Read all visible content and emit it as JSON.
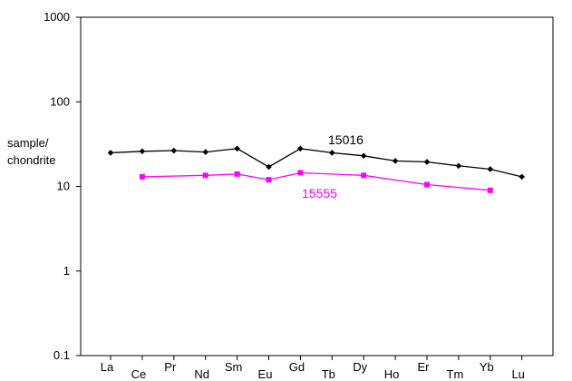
{
  "chart_data": {
    "type": "line",
    "title": "",
    "xlabel": "",
    "ylabel": "sample/ chondrite",
    "ylabel_lines": [
      "sample/",
      "chondrite"
    ],
    "yscale": "log",
    "ylim": [
      0.1,
      1000
    ],
    "yticks": [
      "0.1",
      "1",
      "10",
      "100",
      "1000"
    ],
    "grid": false,
    "legend": "none",
    "categories": [
      "La",
      "Ce",
      "Pr",
      "Nd",
      "Sm",
      "Eu",
      "Gd",
      "Tb",
      "Dy",
      "Ho",
      "Er",
      "Tm",
      "Yb",
      "Lu"
    ],
    "series": [
      {
        "name": "15016",
        "color": "#000000",
        "marker": "diamond",
        "values": [
          25,
          26,
          26.5,
          25.5,
          28,
          17,
          28,
          25,
          23,
          20,
          19.5,
          17.5,
          16,
          13
        ]
      },
      {
        "name": "15555",
        "color": "#ff00ff",
        "marker": "square",
        "values": [
          null,
          13,
          null,
          13.5,
          14,
          12,
          14.5,
          null,
          13.5,
          null,
          10.5,
          null,
          9,
          null
        ]
      }
    ]
  }
}
